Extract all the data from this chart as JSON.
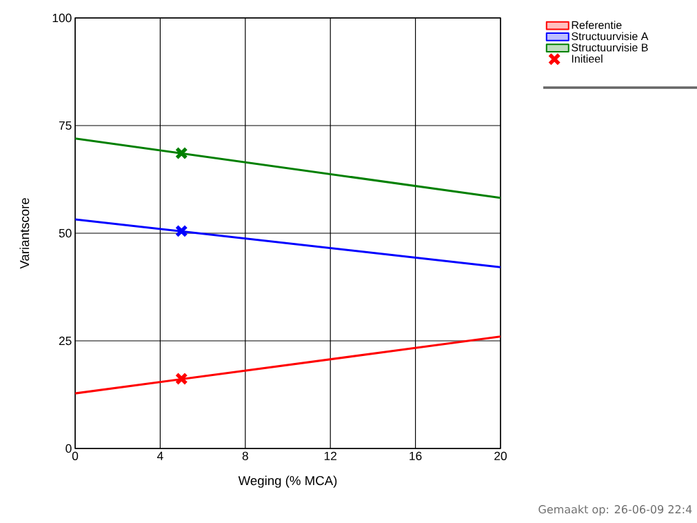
{
  "chart_data": {
    "type": "line",
    "xlabel": "Weging (% MCA)",
    "ylabel": "Variantscore",
    "xlim": [
      0,
      20
    ],
    "ylim": [
      0,
      100
    ],
    "xticks": [
      0,
      4,
      8,
      12,
      16,
      20
    ],
    "yticks": [
      0,
      25,
      50,
      75,
      100
    ],
    "grid": true,
    "legend": "top right",
    "line_style": "solid",
    "series": [
      {
        "name": "Referentie",
        "color": "#ff0000",
        "x": [
          0,
          20
        ],
        "values": [
          12.8,
          26.0
        ]
      },
      {
        "name": "Structuurvisie A",
        "color": "#0000ff",
        "x": [
          0,
          20
        ],
        "values": [
          53.2,
          42.1
        ]
      },
      {
        "name": "Structuurvisie B",
        "color": "#008000",
        "x": [
          0,
          20
        ],
        "values": [
          72.0,
          58.2
        ]
      },
      {
        "name": "Initieel",
        "type": "scatter",
        "marker": "cross",
        "color": "#b00000",
        "colors": [
          "#ff0000",
          "#0000ff",
          "#008000"
        ],
        "x": [
          5,
          5,
          5
        ],
        "values": [
          16.2,
          50.5,
          68.6
        ]
      }
    ],
    "annotations": [
      "Gemaakt op: 26-06-09 22:4"
    ]
  }
}
